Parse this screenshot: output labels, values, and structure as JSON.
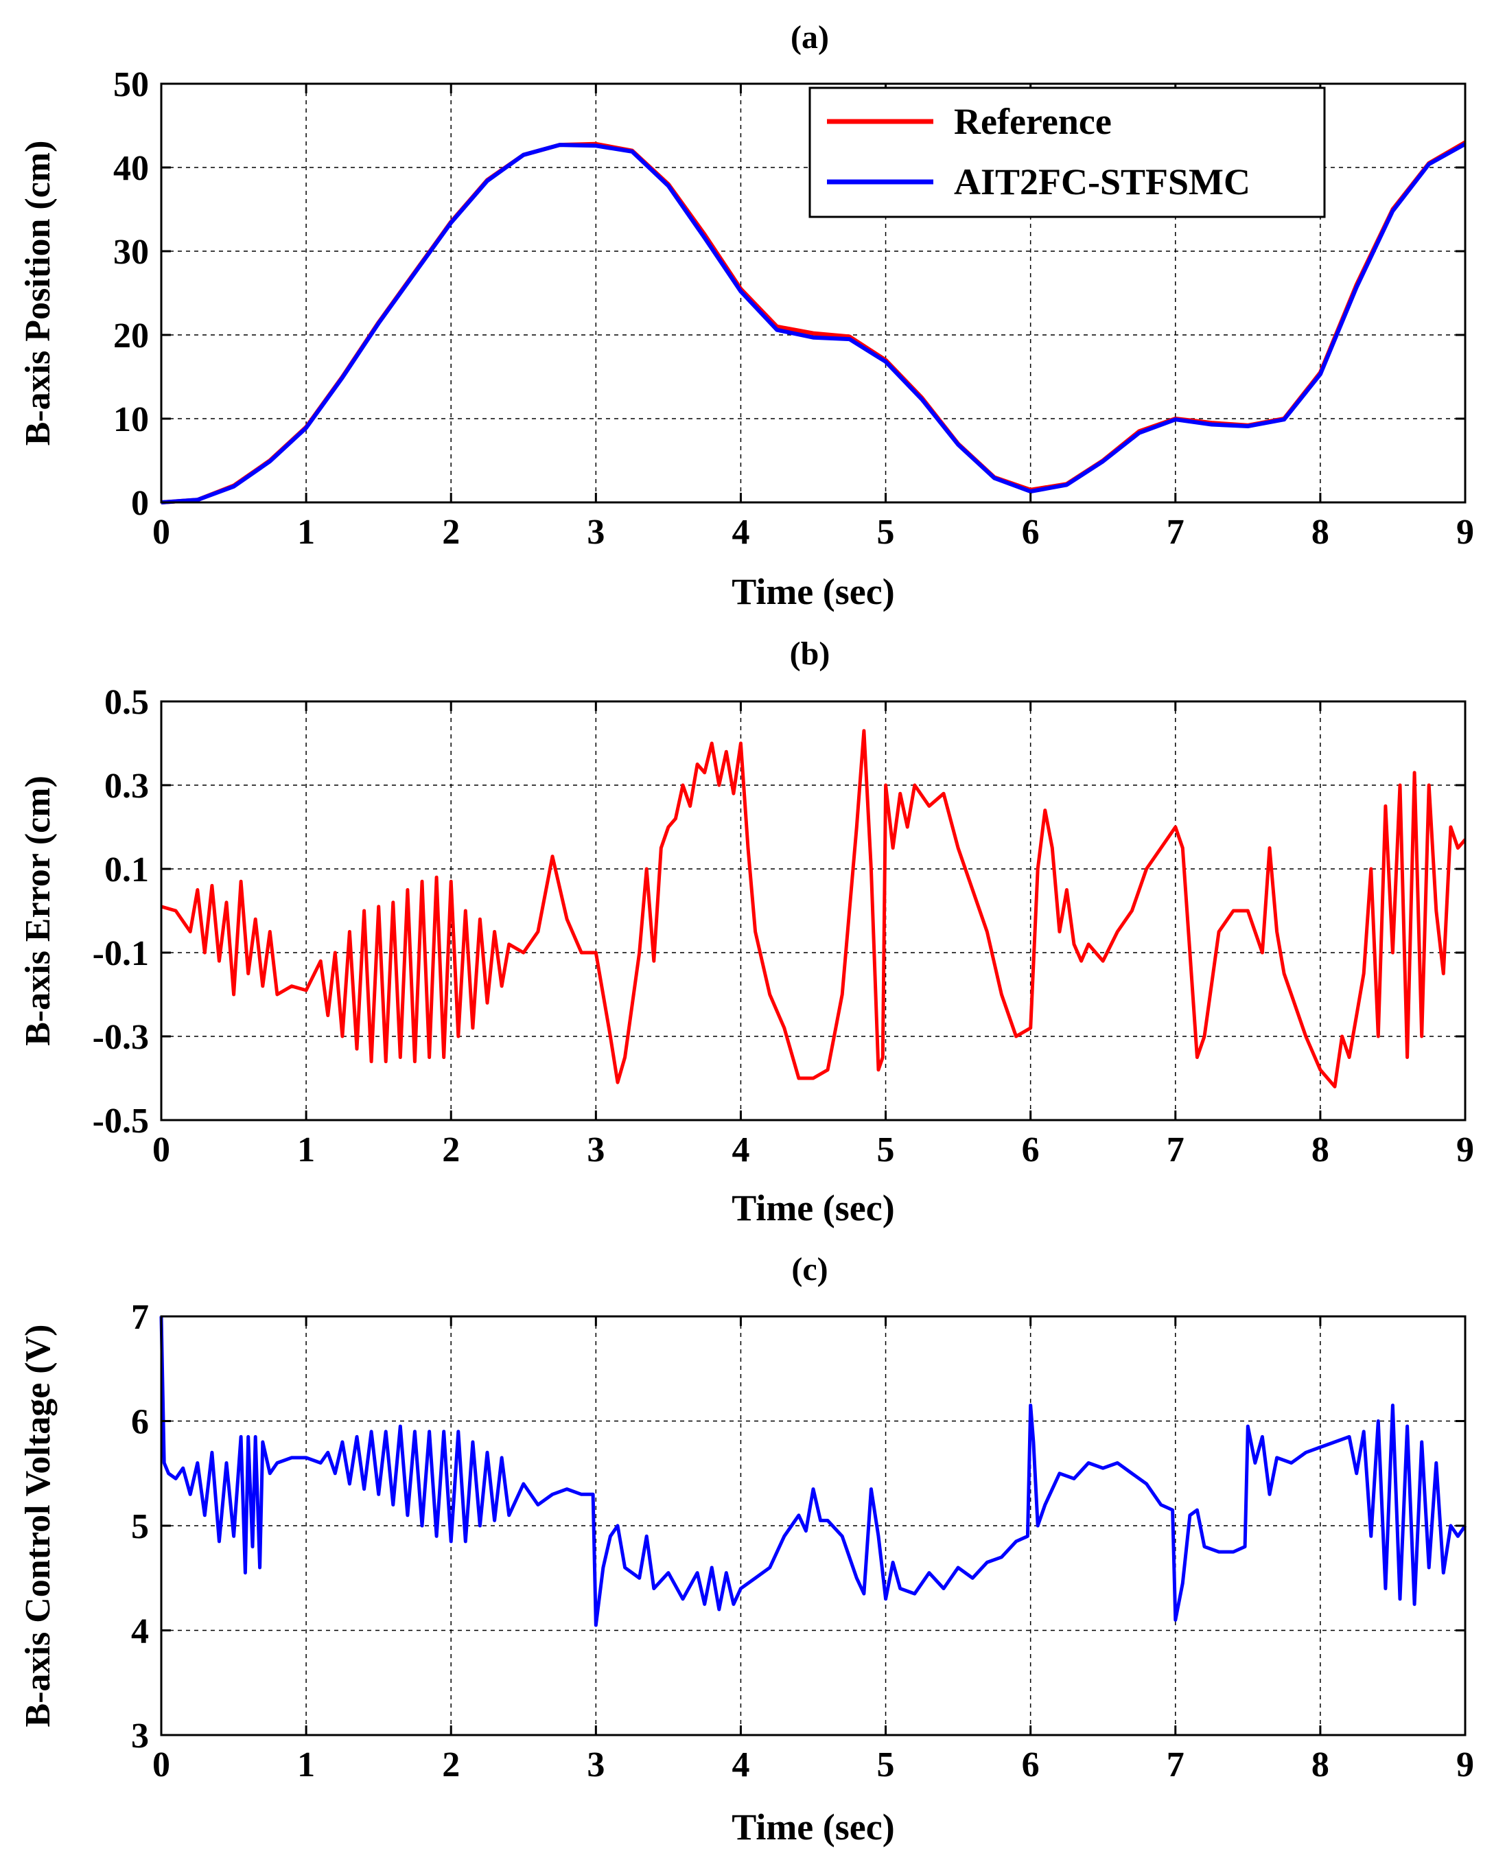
{
  "chart_data": [
    {
      "type": "line",
      "title": "(a)",
      "xlabel": "Time (sec)",
      "ylabel": "B-axis Position (cm)",
      "xlim": [
        0,
        9
      ],
      "ylim": [
        0,
        50
      ],
      "xticks": [
        0,
        1,
        2,
        3,
        4,
        5,
        6,
        7,
        8,
        9
      ],
      "xtick_labels": [
        "0",
        "1",
        "2",
        "3",
        "4",
        "5",
        "6",
        "7",
        "8",
        "9"
      ],
      "yticks": [
        0,
        10,
        20,
        30,
        40,
        50
      ],
      "ytick_labels": [
        "0",
        "10",
        "20",
        "30",
        "40",
        "50"
      ],
      "grid": true,
      "legend": "top-right",
      "series": [
        {
          "name": "Reference",
          "color": "#ff0000",
          "x": [
            0,
            0.25,
            0.5,
            0.75,
            1,
            1.25,
            1.5,
            1.75,
            2,
            2.25,
            2.5,
            2.75,
            3,
            3.25,
            3.5,
            3.75,
            4,
            4.25,
            4.5,
            4.75,
            5,
            5.25,
            5.5,
            5.75,
            6,
            6.25,
            6.5,
            6.75,
            7,
            7.25,
            7.5,
            7.75,
            8,
            8.25,
            8.5,
            8.75,
            9
          ],
          "values": [
            0,
            0.3,
            2,
            5,
            9,
            15,
            21.5,
            27.5,
            33.5,
            38.5,
            41.5,
            42.7,
            42.8,
            42,
            38,
            32,
            25.5,
            21,
            20.2,
            19.8,
            17,
            12.5,
            7,
            3,
            1.5,
            2.2,
            5,
            8.5,
            10,
            9.5,
            9.2,
            10,
            15.5,
            26,
            35,
            40.5,
            43
          ]
        },
        {
          "name": "AIT2FC-STFSMC",
          "color": "#0000ff",
          "x": [
            0,
            0.25,
            0.5,
            0.75,
            1,
            1.25,
            1.5,
            1.75,
            2,
            2.25,
            2.5,
            2.75,
            3,
            3.25,
            3.5,
            3.75,
            4,
            4.25,
            4.5,
            4.75,
            5,
            5.25,
            5.5,
            5.75,
            6,
            6.25,
            6.5,
            6.75,
            7,
            7.25,
            7.5,
            7.75,
            8,
            8.25,
            8.5,
            8.75,
            9
          ],
          "values": [
            0,
            0.3,
            1.9,
            4.9,
            8.9,
            14.9,
            21.4,
            27.4,
            33.4,
            38.4,
            41.5,
            42.7,
            42.6,
            41.9,
            37.8,
            31.6,
            25.2,
            20.6,
            19.7,
            19.5,
            16.8,
            12.3,
            6.9,
            2.9,
            1.3,
            2.1,
            4.9,
            8.3,
            9.9,
            9.3,
            9.1,
            9.9,
            15.3,
            25.7,
            34.8,
            40.4,
            42.8
          ]
        }
      ]
    },
    {
      "type": "line",
      "title": "(b)",
      "xlabel": "Time (sec)",
      "ylabel": "B-axis Error (cm)",
      "xlim": [
        0,
        9
      ],
      "ylim": [
        -0.5,
        0.5
      ],
      "xticks": [
        0,
        1,
        2,
        3,
        4,
        5,
        6,
        7,
        8,
        9
      ],
      "xtick_labels": [
        "0",
        "1",
        "2",
        "3",
        "4",
        "5",
        "6",
        "7",
        "8",
        "9"
      ],
      "yticks": [
        -0.5,
        -0.3,
        -0.1,
        0.1,
        0.3,
        0.5
      ],
      "ytick_labels": [
        "-0.5",
        "-0.3",
        "-0.1",
        "0.1",
        "0.3",
        "0.5"
      ],
      "grid": true,
      "series": [
        {
          "name": "B-axis Error",
          "color": "#ff0000",
          "x": [
            0,
            0.1,
            0.2,
            0.25,
            0.3,
            0.35,
            0.4,
            0.45,
            0.5,
            0.55,
            0.6,
            0.65,
            0.7,
            0.75,
            0.8,
            0.9,
            1.0,
            1.1,
            1.15,
            1.2,
            1.25,
            1.3,
            1.35,
            1.4,
            1.45,
            1.5,
            1.55,
            1.6,
            1.65,
            1.7,
            1.75,
            1.8,
            1.85,
            1.9,
            1.95,
            2.0,
            2.05,
            2.1,
            2.15,
            2.2,
            2.25,
            2.3,
            2.35,
            2.4,
            2.5,
            2.6,
            2.7,
            2.8,
            2.9,
            3.0,
            3.1,
            3.15,
            3.2,
            3.3,
            3.35,
            3.4,
            3.45,
            3.5,
            3.55,
            3.6,
            3.65,
            3.7,
            3.75,
            3.8,
            3.85,
            3.9,
            3.95,
            4.0,
            4.05,
            4.1,
            4.2,
            4.3,
            4.4,
            4.5,
            4.6,
            4.7,
            4.8,
            4.85,
            4.9,
            4.95,
            4.98,
            5.0,
            5.05,
            5.1,
            5.15,
            5.2,
            5.3,
            5.4,
            5.5,
            5.6,
            5.7,
            5.8,
            5.9,
            6.0,
            6.05,
            6.1,
            6.15,
            6.2,
            6.25,
            6.3,
            6.35,
            6.4,
            6.5,
            6.6,
            6.7,
            6.8,
            6.9,
            7.0,
            7.05,
            7.1,
            7.15,
            7.2,
            7.3,
            7.4,
            7.5,
            7.6,
            7.65,
            7.7,
            7.75,
            7.8,
            7.9,
            8.0,
            8.1,
            8.15,
            8.2,
            8.25,
            8.3,
            8.35,
            8.4,
            8.45,
            8.5,
            8.55,
            8.6,
            8.65,
            8.7,
            8.75,
            8.8,
            8.85,
            8.9,
            8.95,
            9.0
          ],
          "values": [
            0.01,
            0.0,
            -0.05,
            0.05,
            -0.1,
            0.06,
            -0.12,
            0.02,
            -0.2,
            0.07,
            -0.15,
            -0.02,
            -0.18,
            -0.05,
            -0.2,
            -0.18,
            -0.19,
            -0.12,
            -0.25,
            -0.1,
            -0.3,
            -0.05,
            -0.33,
            0.0,
            -0.36,
            0.01,
            -0.36,
            0.02,
            -0.35,
            0.05,
            -0.36,
            0.07,
            -0.35,
            0.08,
            -0.35,
            0.07,
            -0.3,
            0.0,
            -0.28,
            -0.02,
            -0.22,
            -0.05,
            -0.18,
            -0.08,
            -0.1,
            -0.05,
            0.13,
            -0.02,
            -0.1,
            -0.1,
            -0.3,
            -0.41,
            -0.35,
            -0.1,
            0.1,
            -0.12,
            0.15,
            0.2,
            0.22,
            0.3,
            0.25,
            0.35,
            0.33,
            0.4,
            0.3,
            0.38,
            0.28,
            0.4,
            0.15,
            -0.05,
            -0.2,
            -0.28,
            -0.4,
            -0.4,
            -0.38,
            -0.2,
            0.2,
            0.43,
            0.1,
            -0.38,
            -0.35,
            0.3,
            0.15,
            0.28,
            0.2,
            0.3,
            0.25,
            0.28,
            0.15,
            0.05,
            -0.05,
            -0.2,
            -0.3,
            -0.28,
            0.1,
            0.24,
            0.15,
            -0.05,
            0.05,
            -0.08,
            -0.12,
            -0.08,
            -0.12,
            -0.05,
            0.0,
            0.1,
            0.15,
            0.2,
            0.15,
            -0.1,
            -0.35,
            -0.3,
            -0.05,
            0.0,
            0.0,
            -0.1,
            0.15,
            -0.05,
            -0.15,
            -0.2,
            -0.3,
            -0.38,
            -0.42,
            -0.3,
            -0.35,
            -0.25,
            -0.15,
            0.1,
            -0.3,
            0.25,
            -0.1,
            0.3,
            -0.35,
            0.33,
            -0.3,
            0.3,
            0.0,
            -0.15,
            0.2,
            0.15,
            0.17
          ]
        }
      ]
    },
    {
      "type": "line",
      "title": "(c)",
      "xlabel": "Time (sec)",
      "ylabel": "B-axis Control Voltage (V)",
      "xlim": [
        0,
        9
      ],
      "ylim": [
        3,
        7
      ],
      "xticks": [
        0,
        1,
        2,
        3,
        4,
        5,
        6,
        7,
        8,
        9
      ],
      "xtick_labels": [
        "0",
        "1",
        "2",
        "3",
        "4",
        "5",
        "6",
        "7",
        "8",
        "9"
      ],
      "yticks": [
        3,
        4,
        5,
        6,
        7
      ],
      "ytick_labels": [
        "3",
        "4",
        "5",
        "6",
        "7"
      ],
      "grid": true,
      "series": [
        {
          "name": "B-axis Control Voltage",
          "color": "#0000ff",
          "x": [
            0,
            0.02,
            0.05,
            0.1,
            0.15,
            0.2,
            0.25,
            0.3,
            0.35,
            0.4,
            0.45,
            0.5,
            0.55,
            0.58,
            0.6,
            0.63,
            0.65,
            0.68,
            0.7,
            0.75,
            0.8,
            0.9,
            1.0,
            1.1,
            1.15,
            1.2,
            1.25,
            1.3,
            1.35,
            1.4,
            1.45,
            1.5,
            1.55,
            1.6,
            1.65,
            1.7,
            1.75,
            1.8,
            1.85,
            1.9,
            1.95,
            2.0,
            2.05,
            2.1,
            2.15,
            2.2,
            2.25,
            2.3,
            2.35,
            2.4,
            2.5,
            2.6,
            2.7,
            2.8,
            2.9,
            2.98,
            3.0,
            3.05,
            3.1,
            3.15,
            3.2,
            3.3,
            3.35,
            3.4,
            3.5,
            3.6,
            3.7,
            3.75,
            3.8,
            3.85,
            3.9,
            3.95,
            4.0,
            4.1,
            4.2,
            4.3,
            4.4,
            4.45,
            4.5,
            4.55,
            4.6,
            4.7,
            4.8,
            4.85,
            4.9,
            4.95,
            5.0,
            5.05,
            5.1,
            5.2,
            5.3,
            5.4,
            5.5,
            5.6,
            5.7,
            5.8,
            5.9,
            5.98,
            6.0,
            6.02,
            6.05,
            6.1,
            6.2,
            6.3,
            6.4,
            6.5,
            6.6,
            6.7,
            6.8,
            6.9,
            6.98,
            7.0,
            7.05,
            7.1,
            7.15,
            7.2,
            7.3,
            7.4,
            7.48,
            7.5,
            7.55,
            7.6,
            7.65,
            7.7,
            7.8,
            7.9,
            8.0,
            8.1,
            8.2,
            8.25,
            8.3,
            8.35,
            8.4,
            8.45,
            8.5,
            8.55,
            8.6,
            8.65,
            8.7,
            8.75,
            8.8,
            8.85,
            8.9,
            8.95,
            9.0
          ],
          "values": [
            7.0,
            5.6,
            5.5,
            5.45,
            5.55,
            5.3,
            5.6,
            5.1,
            5.7,
            4.85,
            5.6,
            4.9,
            5.85,
            4.55,
            5.85,
            4.8,
            5.85,
            4.6,
            5.8,
            5.5,
            5.6,
            5.65,
            5.65,
            5.6,
            5.7,
            5.5,
            5.8,
            5.4,
            5.85,
            5.35,
            5.9,
            5.3,
            5.9,
            5.2,
            5.95,
            5.1,
            5.9,
            5.0,
            5.9,
            4.9,
            5.9,
            4.85,
            5.9,
            4.85,
            5.8,
            5.0,
            5.7,
            5.05,
            5.65,
            5.1,
            5.4,
            5.2,
            5.3,
            5.35,
            5.3,
            5.3,
            4.05,
            4.6,
            4.9,
            5.0,
            4.6,
            4.5,
            4.9,
            4.4,
            4.55,
            4.3,
            4.55,
            4.25,
            4.6,
            4.2,
            4.55,
            4.25,
            4.4,
            4.5,
            4.6,
            4.9,
            5.1,
            4.95,
            5.35,
            5.05,
            5.05,
            4.9,
            4.5,
            4.35,
            5.35,
            4.9,
            4.3,
            4.65,
            4.4,
            4.35,
            4.55,
            4.4,
            4.6,
            4.5,
            4.65,
            4.7,
            4.85,
            4.9,
            6.15,
            5.8,
            5.0,
            5.2,
            5.5,
            5.45,
            5.6,
            5.55,
            5.6,
            5.5,
            5.4,
            5.2,
            5.15,
            4.1,
            4.45,
            5.1,
            5.15,
            4.8,
            4.75,
            4.75,
            4.8,
            5.95,
            5.6,
            5.85,
            5.3,
            5.65,
            5.6,
            5.7,
            5.75,
            5.8,
            5.85,
            5.5,
            5.9,
            4.9,
            6.0,
            4.4,
            6.15,
            4.3,
            5.95,
            4.25,
            5.8,
            4.6,
            5.6,
            4.55,
            5.0,
            4.9,
            5.0
          ]
        }
      ]
    }
  ]
}
